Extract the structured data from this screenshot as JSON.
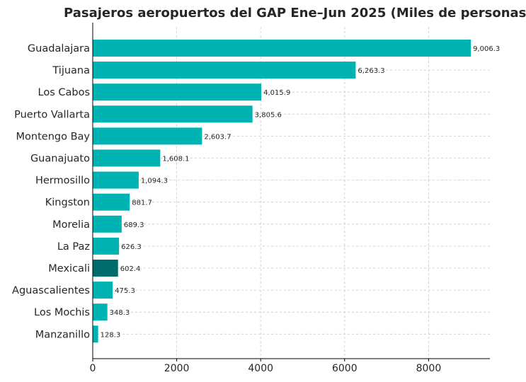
{
  "chart_data": {
    "type": "bar",
    "orientation": "horizontal",
    "title": "Pasajeros aeropuertos del GAP Ene–Jun 2025 (Miles de personas",
    "xlabel": "",
    "ylabel": "",
    "categories": [
      "Guadalajara",
      "Tijuana",
      "Los Cabos",
      "Puerto Vallarta",
      "Montengo Bay",
      "Guanajuato",
      "Hermosillo",
      "Kingston",
      "Morelia",
      "La Paz",
      "Mexicali",
      "Aguascalientes",
      "Los Mochis",
      "Manzanillo"
    ],
    "values": [
      9006.3,
      6263.3,
      4015.9,
      3805.6,
      2603.7,
      1608.1,
      1094.3,
      881.7,
      689.3,
      626.3,
      602.4,
      475.3,
      348.3,
      128.3
    ],
    "value_labels": [
      "9,006.3",
      "6,263.3",
      "4,015.9",
      "3,805.6",
      "2,603.7",
      "1,608.1",
      "1,094.3",
      "881.7",
      "689.3",
      "626.3",
      "602.4",
      "475.3",
      "348.3",
      "128.3"
    ],
    "highlight": "Mexicali",
    "xlim": [
      0,
      9460
    ],
    "xticks": [
      0,
      2000,
      4000,
      6000,
      8000
    ],
    "xtick_labels": [
      "0",
      "2000",
      "4000",
      "6000",
      "8000"
    ],
    "grid": true,
    "colors": {
      "bar": "#00b3b3",
      "highlight": "#006b6b",
      "grid": "#c8c8c8",
      "axis": "#000000",
      "text": "#262626"
    }
  }
}
